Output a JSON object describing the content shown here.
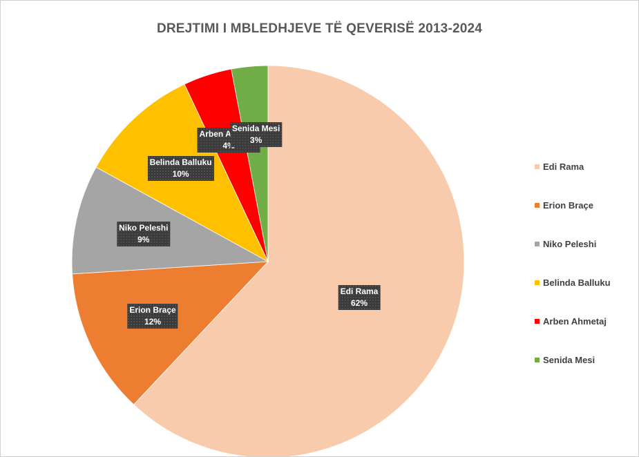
{
  "chart_data": {
    "type": "pie",
    "title": "DREJTIMI I MBLEDHJEVE TË QEVERISË 2013-2024",
    "slices": [
      {
        "name": "Edi Rama",
        "value": 62,
        "label": "62%",
        "color": "#F8CBAD"
      },
      {
        "name": "Erion Braçe",
        "value": 12,
        "label": "12%",
        "color": "#ED7D31"
      },
      {
        "name": "Niko Peleshi",
        "value": 9,
        "label": "9%",
        "color": "#A5A5A5"
      },
      {
        "name": "Belinda Balluku",
        "value": 10,
        "label": "10%",
        "color": "#FFC000"
      },
      {
        "name": "Arben Ahmetaj",
        "value": 4,
        "label": "4%",
        "color": "#FF0000"
      },
      {
        "name": "Senida Mesi",
        "value": 3,
        "label": "3%",
        "color": "#70AD47"
      }
    ],
    "legend_position": "right"
  }
}
